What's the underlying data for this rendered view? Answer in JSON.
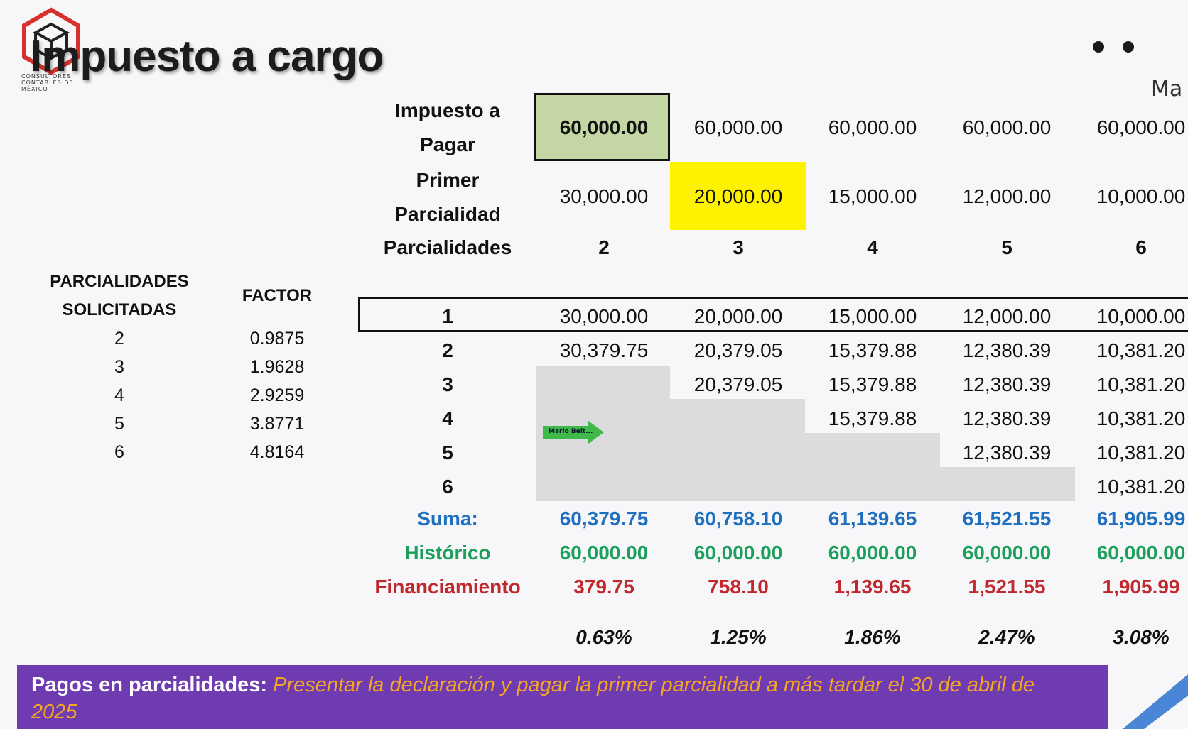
{
  "title": "Impuesto a cargo",
  "logo": {
    "text": "CONSULTORES CONTABLES DE MÉXICO"
  },
  "corner_text": "Ma",
  "labels": {
    "impuesto_a_pagar_1": "Impuesto a",
    "impuesto_a_pagar_2": "Pagar",
    "primer_parcialidad_1": "Primer",
    "primer_parcialidad_2": "Parcialidad",
    "parcialidades": "Parcialidades",
    "suma": "Suma:",
    "historico": "Histórico",
    "financiamiento": "Financiamiento"
  },
  "impuesto_a_pagar": [
    "60,000.00",
    "60,000.00",
    "60,000.00",
    "60,000.00",
    "60,000.00"
  ],
  "primer_parcialidad": [
    "30,000.00",
    "20,000.00",
    "15,000.00",
    "12,000.00",
    "10,000.00"
  ],
  "parcialidades": [
    "2",
    "3",
    "4",
    "5",
    "6"
  ],
  "payment_rows": [
    {
      "n": "1",
      "values": [
        "30,000.00",
        "20,000.00",
        "15,000.00",
        "12,000.00",
        "10,000.00"
      ]
    },
    {
      "n": "2",
      "values": [
        "30,379.75",
        "20,379.05",
        "15,379.88",
        "12,380.39",
        "10,381.20"
      ]
    },
    {
      "n": "3",
      "values": [
        "",
        "20,379.05",
        "15,379.88",
        "12,380.39",
        "10,381.20"
      ]
    },
    {
      "n": "4",
      "values": [
        "",
        "",
        "15,379.88",
        "12,380.39",
        "10,381.20"
      ]
    },
    {
      "n": "5",
      "values": [
        "",
        "",
        "",
        "12,380.39",
        "10,381.20"
      ]
    },
    {
      "n": "6",
      "values": [
        "",
        "",
        "",
        "",
        "10,381.20"
      ]
    }
  ],
  "suma": [
    "60,379.75",
    "60,758.10",
    "61,139.65",
    "61,521.55",
    "61,905.99"
  ],
  "historico": [
    "60,000.00",
    "60,000.00",
    "60,000.00",
    "60,000.00",
    "60,000.00"
  ],
  "financiamiento": [
    "379.75",
    "758.10",
    "1,139.65",
    "1,521.55",
    "1,905.99"
  ],
  "porcentaje": [
    "0.63%",
    "1.25%",
    "1.86%",
    "2.47%",
    "3.08%"
  ],
  "factor_table": {
    "header_col1_1": "PARCIALIDADES",
    "header_col1_2": "SOLICITADAS",
    "header_col2": "FACTOR",
    "rows": [
      {
        "parcialidades": "2",
        "factor": "0.9875"
      },
      {
        "parcialidades": "3",
        "factor": "1.9628"
      },
      {
        "parcialidades": "4",
        "factor": "2.9259"
      },
      {
        "parcialidades": "5",
        "factor": "3.8771"
      },
      {
        "parcialidades": "6",
        "factor": "4.8164"
      }
    ]
  },
  "arrow_label": "Mario Belt...",
  "footer": {
    "key": "Pagos en parcialidades:",
    "value": "Presentar la declaración y pagar la primer parcialidad a más tardar el 30 de abril de 2025"
  },
  "colors": {
    "green_cell": "#c4d6a4",
    "yellow_cell": "#fff200",
    "footer_bg": "#6f3bb0",
    "suma": "#1f6fbf",
    "historico": "#1aa05a",
    "financiamiento": "#c0282d"
  }
}
